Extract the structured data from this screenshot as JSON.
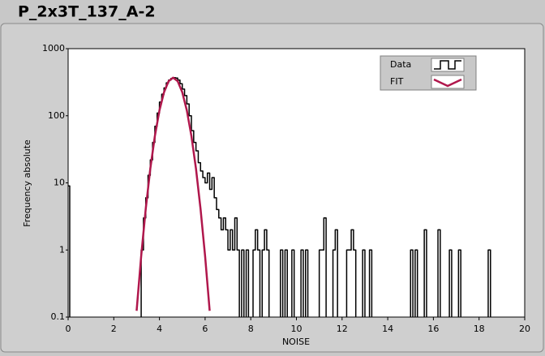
{
  "chart_data": {
    "type": "step-line",
    "title": "P_2x3T_137_A-2",
    "x_label": "NOISE",
    "y_label": "Frequency absolute",
    "xlim": [
      0,
      20
    ],
    "xticks": [
      0,
      2,
      4,
      6,
      8,
      10,
      12,
      14,
      16,
      18,
      20
    ],
    "ylim": [
      0.1,
      1000
    ],
    "yticks": [
      0.1,
      1,
      10,
      100,
      1000
    ],
    "log_y": true,
    "grid": false,
    "legend": "top-right",
    "series": [
      {
        "name": "Data",
        "color": "#000000",
        "style": "step",
        "x": [
          0,
          0.07,
          3.2,
          3.3,
          3.4,
          3.5,
          3.6,
          3.7,
          3.8,
          3.9,
          4.0,
          4.1,
          4.2,
          4.3,
          4.4,
          4.5,
          4.6,
          4.7,
          4.8,
          4.9,
          5.0,
          5.1,
          5.2,
          5.3,
          5.4,
          5.5,
          5.6,
          5.7,
          5.8,
          5.9,
          6.0,
          6.1,
          6.2,
          6.3,
          6.4,
          6.5,
          6.6,
          6.7,
          6.8,
          6.9,
          7.0,
          7.1,
          7.2,
          7.3,
          7.4,
          7.5,
          7.6,
          7.7,
          7.8,
          7.9,
          8.1,
          8.2,
          8.3,
          8.4,
          8.5,
          8.6,
          8.7,
          8.8,
          9.3,
          9.4,
          9.5,
          9.6,
          9.8,
          9.9,
          10.2,
          10.3,
          10.4,
          10.5,
          11.0,
          11.2,
          11.3,
          11.6,
          11.7,
          11.8,
          12.2,
          12.4,
          12.5,
          12.6,
          12.9,
          13.0,
          13.2,
          13.3,
          15.0,
          15.1,
          15.2,
          15.3,
          15.6,
          15.7,
          16.2,
          16.3,
          16.7,
          16.8,
          17.1,
          17.2,
          18.4,
          18.5
        ],
        "values": [
          9,
          0,
          1,
          3,
          6,
          13,
          22,
          40,
          70,
          110,
          160,
          210,
          260,
          310,
          340,
          360,
          370,
          365,
          340,
          300,
          250,
          200,
          150,
          100,
          60,
          40,
          30,
          20,
          15,
          12,
          10,
          14,
          8,
          12,
          6,
          4,
          3,
          2,
          3,
          2,
          1,
          2,
          1,
          3,
          1,
          0,
          1,
          0,
          1,
          0,
          1,
          2,
          1,
          0,
          1,
          2,
          1,
          0,
          1,
          0,
          1,
          0,
          1,
          0,
          1,
          0,
          1,
          0,
          1,
          3,
          0,
          1,
          2,
          0,
          1,
          2,
          1,
          0,
          1,
          0,
          1,
          0,
          1,
          0,
          1,
          0,
          2,
          0,
          2,
          0,
          1,
          0,
          1,
          0,
          1,
          0
        ]
      },
      {
        "name": "FIT",
        "color": "#b0174c",
        "style": "line",
        "x": [
          3.0,
          3.2,
          3.4,
          3.6,
          3.8,
          4.0,
          4.2,
          4.4,
          4.6,
          4.8,
          5.0,
          5.2,
          5.4,
          5.6,
          5.8,
          6.0,
          6.2
        ],
        "values": [
          0.124,
          0.81,
          4.1,
          16.3,
          50,
          120,
          224,
          327,
          370,
          327,
          224,
          120,
          50,
          16.3,
          4.1,
          0.81,
          0.124
        ]
      }
    ]
  }
}
